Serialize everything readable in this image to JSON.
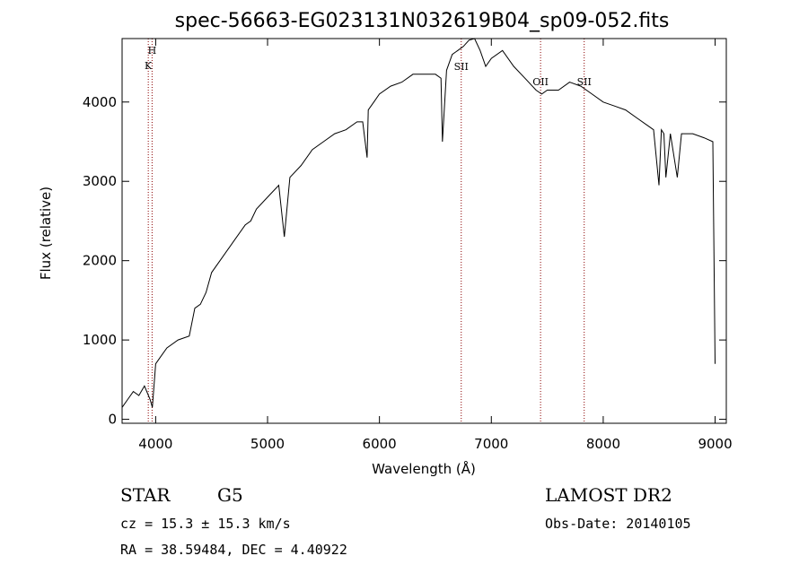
{
  "chart_data": {
    "type": "line",
    "title": "spec-56663-EG023131N032619B04_sp09-052.fits",
    "xlabel": "Wavelength (Å)",
    "ylabel": "Flux (relative)",
    "xlim": [
      3700,
      9100
    ],
    "ylim": [
      -50,
      4800
    ],
    "xticks": [
      4000,
      5000,
      6000,
      7000,
      8000,
      9000
    ],
    "yticks": [
      0,
      1000,
      2000,
      3000,
      4000
    ],
    "grid": false,
    "line_color": "#000000",
    "marker_color": "#8b0000",
    "series": [
      {
        "x": [
          3700,
          3750,
          3800,
          3850,
          3900,
          3950,
          3970,
          4000,
          4050,
          4100,
          4200,
          4300,
          4350,
          4400,
          4450,
          4500,
          4600,
          4700,
          4800,
          4850,
          4900,
          5000,
          5100,
          5150,
          5200,
          5300,
          5400,
          5500,
          5600,
          5700,
          5800,
          5850,
          5890,
          5900,
          5950,
          6000,
          6100,
          6200,
          6300,
          6400,
          6500,
          6550,
          6563,
          6600,
          6650,
          6700,
          6750,
          6800,
          6850,
          6900,
          6950,
          7000,
          7100,
          7200,
          7300,
          7400,
          7450,
          7500,
          7600,
          7700,
          7800,
          7900,
          8000,
          8100,
          8200,
          8300,
          8400,
          8450,
          8498,
          8520,
          8542,
          8560,
          8600,
          8662,
          8700,
          8800,
          8900,
          8980,
          9000
        ],
        "y": [
          150,
          250,
          350,
          300,
          420,
          250,
          150,
          700,
          800,
          900,
          1000,
          1050,
          1400,
          1450,
          1600,
          1850,
          2050,
          2250,
          2450,
          2500,
          2650,
          2800,
          2950,
          2300,
          3050,
          3200,
          3400,
          3500,
          3600,
          3650,
          3750,
          3750,
          3300,
          3900,
          4000,
          4100,
          4200,
          4250,
          4350,
          4350,
          4350,
          4300,
          3500,
          4400,
          4600,
          4650,
          4700,
          4780,
          4800,
          4650,
          4450,
          4550,
          4650,
          4450,
          4300,
          4150,
          4100,
          4150,
          4150,
          4250,
          4200,
          4100,
          4000,
          3950,
          3900,
          3800,
          3700,
          3650,
          2950,
          3650,
          3600,
          3050,
          3600,
          3050,
          3600,
          3600,
          3550,
          3500,
          700
        ]
      }
    ],
    "spectral_lines": [
      {
        "label": "H",
        "x": 3968
      },
      {
        "label": "K",
        "x": 3934
      },
      {
        "label": "SII",
        "x": 6731
      },
      {
        "label": "OII",
        "x": 7440
      },
      {
        "label": "SII",
        "x": 7830
      }
    ]
  },
  "footer": {
    "object": "STAR",
    "subclass": "G5",
    "cz": "cz = 15.3 ± 15.3 km/s",
    "coords": "RA =  38.59484, DEC =   4.40922",
    "survey": "LAMOST DR2",
    "obsdate": "Obs-Date: 20140105"
  }
}
